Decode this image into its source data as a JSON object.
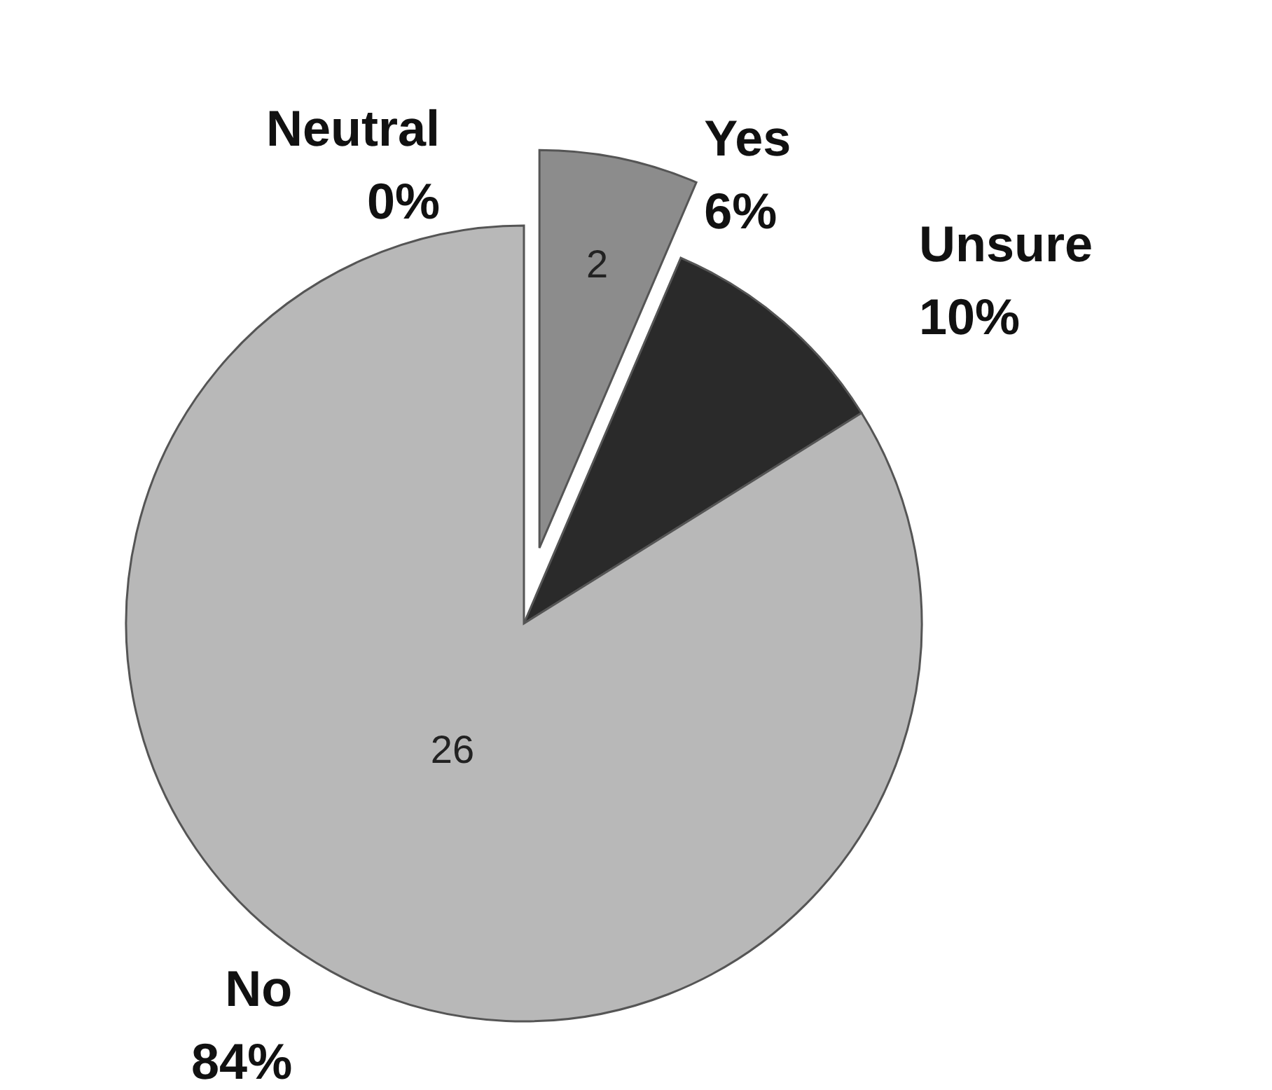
{
  "chart_data": {
    "type": "pie",
    "categories": [
      "Yes",
      "Unsure",
      "No",
      "Neutral"
    ],
    "values": [
      2,
      3,
      26,
      0
    ],
    "colors": [
      "#8c8c8c",
      "#2a2a2a",
      "#b8b8b8",
      null
    ],
    "value_labels": [
      "2",
      null,
      "26",
      null
    ],
    "annotations": [
      "6%",
      "10%",
      "84%",
      "0%"
    ]
  }
}
